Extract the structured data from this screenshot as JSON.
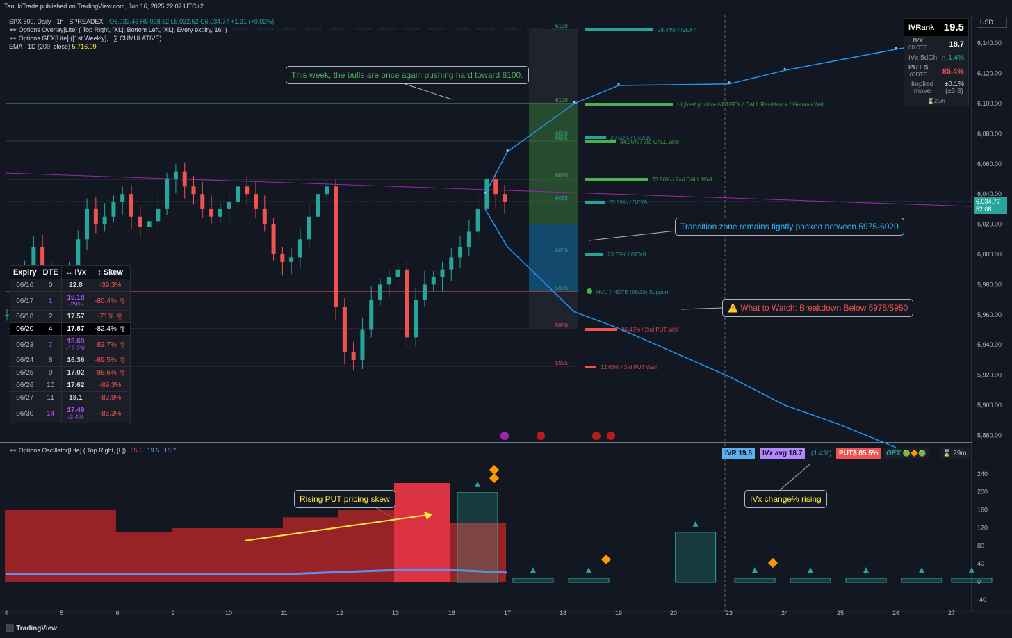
{
  "header": {
    "publish": "TanukiTrade published on TradingView.com, Jun 16, 2025 22:07 UTC+2",
    "symbol": "SPX 500, Daily · 1h · SPREADEX",
    "ohlc": "O6,033.46 H6,038.52 L6,032.52 C6,034.77 +1.31 (+0.02%)",
    "overlay": "Options Overlay[Lite] ( Top Right, [XL],  Bottom Left, [XL], Every expiry, 16, )",
    "gex": "Options GEX[Lite] ([1st Weekly], , ∑ CUMULATIVE)",
    "ema_label": "EMA · 1D (200, close)",
    "ema_value": "5,716.09",
    "currency": "USD",
    "osc_label": "Options Oscillator[Lite] ( Top Right, [L])",
    "osc_v1": "85.5",
    "osc_v2": "19.5",
    "osc_v3": "18.7",
    "brand": "TradingView"
  },
  "ivr_box": {
    "ivrank_label": "IVRank",
    "ivrank": "19.5",
    "ivx_label": "IVx",
    "ivx_sub": "60 DTE",
    "ivx": "18.7",
    "ivx5d_label": "IVx 5dCh",
    "ivx5d": "△ 1.4%",
    "put_label": "PUT $",
    "put_sub": "60DTE",
    "put": "85.4%",
    "implied_label": "Implied move",
    "implied": "±0.1%",
    "implied_sub": "(±5.8)",
    "timer": "29m"
  },
  "price_tag": {
    "price": "6,034.77",
    "time": "52:08"
  },
  "expiry_table": {
    "headers": [
      "Expiry",
      "DTE",
      "↔ IVx",
      "↕ Skew"
    ],
    "rows": [
      {
        "exp": "06/16",
        "dte": "0",
        "ivx": "22.8",
        "chg": "",
        "skew": "-39.3%",
        "icon": ""
      },
      {
        "exp": "06/17",
        "dte": "1",
        "ivx": "16.18",
        "chg": "-29%",
        "skew": "-80.4%",
        "icon": "🌪"
      },
      {
        "exp": "06/18",
        "dte": "2",
        "ivx": "17.57",
        "chg": "",
        "skew": "-71%",
        "icon": "🌪"
      },
      {
        "exp": "06/20",
        "dte": "4",
        "ivx": "17.87",
        "chg": "",
        "skew": "-82.4%",
        "icon": "🌪"
      },
      {
        "exp": "06/23",
        "dte": "7",
        "ivx": "15.69",
        "chg": "-12.2%",
        "skew": "-83.7%",
        "icon": "🌪"
      },
      {
        "exp": "06/24",
        "dte": "8",
        "ivx": "16.36",
        "chg": "",
        "skew": "-89.5%",
        "icon": "🌪"
      },
      {
        "exp": "06/25",
        "dte": "9",
        "ivx": "17.02",
        "chg": "",
        "skew": "-88.6%",
        "icon": "🌪"
      },
      {
        "exp": "06/26",
        "dte": "10",
        "ivx": "17.62",
        "chg": "",
        "skew": "-89.3%",
        "icon": ""
      },
      {
        "exp": "06/27",
        "dte": "11",
        "ivx": "18.1",
        "chg": "",
        "skew": "-83.9%",
        "icon": ""
      },
      {
        "exp": "06/30",
        "dte": "14",
        "ivx": "17.49",
        "chg": "-3.4%",
        "skew": "-85.3%",
        "icon": ""
      }
    ]
  },
  "callouts": {
    "bulls": "This week, the bulls are once again pushing hard toward 6100.",
    "transition": "Transition zone remains tightly packed between 5975-6020",
    "watch": "⚠️ What to Watch: Breakdown Below 5975/5950",
    "rising_put": "Rising PUT pricing skew",
    "ivx_change": "IVx change% rising"
  },
  "osc_badges": {
    "ivr": "IVR 19.5",
    "ivx_avg": "IVx avg 18.7",
    "chg": "(1.4%)",
    "put": "PUT$ 85.5%",
    "gex": "GEX",
    "timer": "29m"
  },
  "gex_levels": [
    {
      "strike": "6150",
      "label": "28.44% / GEX7",
      "color": "#26a69a"
    },
    {
      "strike": "6100",
      "label": "Highest positive NETGEX / CALL Resistance / Gamma Wall",
      "color": "#4caf50"
    },
    {
      "strike": "6080",
      "label": "20.53% / GEX10",
      "color": "#26a69a"
    },
    {
      "strike": "6075",
      "label": "34.56% / 3rd CALL Wall",
      "color": "#4caf50"
    },
    {
      "strike": "6050",
      "label": "73.96% / 2nd CALL Wall",
      "color": "#4caf50"
    },
    {
      "strike": "6035",
      "label": "23.09% / GEX9",
      "color": "#26a69a"
    },
    {
      "strike": "6000",
      "label": "23.79% / GEX8",
      "color": "#26a69a"
    },
    {
      "strike": "5975",
      "label": "HVL ∑ 4DTE (06/20)",
      "color": "#26a69a",
      "extra": "Support"
    },
    {
      "strike": "5950",
      "label": "36.48% / 2nd PUT Wall",
      "color": "#ef5350"
    },
    {
      "strike": "5925",
      "label": "12.68% / 3rd PUT Wall",
      "color": "#ef5350"
    }
  ],
  "chart_data": {
    "type": "line",
    "title": "SPX 500, Daily · 1h · SPREADEX",
    "y_axis_ticks": [
      6140,
      6120,
      6100,
      6080,
      6060,
      6040,
      6020,
      6000,
      5980,
      5960,
      5940,
      5920,
      5900,
      5880
    ],
    "ylim": [
      5877,
      6148
    ],
    "x_axis_ticks": [
      "4",
      "5",
      "6",
      "9",
      "10",
      "11",
      "12",
      "13",
      "16",
      "17",
      "18",
      "19",
      "20",
      "23",
      "24",
      "25",
      "26",
      "27"
    ],
    "price_series": [
      5960,
      5970,
      5990,
      6005,
      5985,
      5978,
      5982,
      5990,
      6010,
      6030,
      6020,
      6025,
      6035,
      6040,
      6025,
      6018,
      6022,
      6030,
      6050,
      6055,
      6045,
      6040,
      6030,
      6025,
      6030,
      6035,
      6045,
      6040,
      6030,
      6020,
      6000,
      5995,
      5998,
      6010,
      6025,
      6040,
      6045,
      5965,
      5935,
      5930,
      5950,
      5970,
      5980,
      5985,
      5990,
      5945,
      5970,
      5980,
      5985,
      5990,
      5998,
      6005,
      6015,
      6030,
      6050,
      6040,
      6035
    ],
    "projection_upper": [
      [
        16.6,
        6040
      ],
      [
        17,
        6068
      ],
      [
        18.2,
        6100
      ],
      [
        19,
        6112
      ],
      [
        23,
        6113
      ],
      [
        24,
        6122
      ],
      [
        26,
        6136
      ],
      [
        27,
        6142
      ]
    ],
    "projection_lower": [
      [
        16.6,
        6030
      ],
      [
        17,
        6005
      ],
      [
        18.2,
        5962
      ],
      [
        19,
        5951
      ],
      [
        23,
        5919
      ],
      [
        24,
        5900
      ],
      [
        25,
        5887
      ],
      [
        26,
        5872
      ]
    ],
    "oscillator": {
      "y_ticks": [
        240,
        200,
        160,
        120,
        80,
        40,
        0,
        -40
      ],
      "put_skew": [
        [
          4,
          40
        ],
        [
          5,
          40
        ],
        [
          6,
          28
        ],
        [
          9,
          30
        ],
        [
          10,
          30
        ],
        [
          11,
          36
        ],
        [
          12,
          40
        ],
        [
          13,
          55
        ],
        [
          16,
          33
        ],
        [
          17,
          25
        ]
      ],
      "ivx_change": [
        [
          16.5,
          170
        ],
        [
          17.5,
          7
        ],
        [
          18.5,
          7
        ],
        [
          20.5,
          95
        ],
        [
          23.5,
          5
        ],
        [
          24.5,
          7
        ],
        [
          25.5,
          7
        ],
        [
          26.5,
          1
        ],
        [
          27.5,
          8
        ]
      ]
    }
  }
}
